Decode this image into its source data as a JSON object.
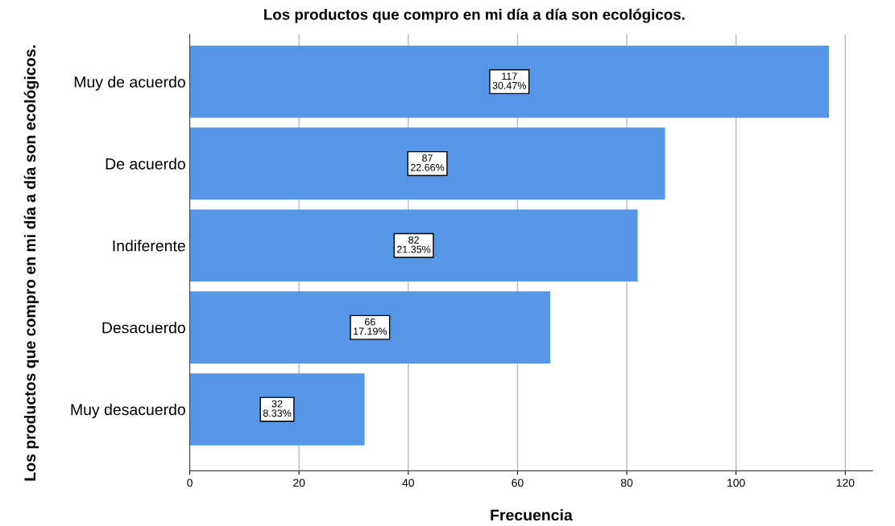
{
  "chart_data": {
    "type": "bar",
    "orientation": "horizontal",
    "title": "Los productos que compro en mi día a día son ecológicos.",
    "xlabel": "Frecuencia",
    "ylabel": "Los productos que compro en mi día a día son ecológicos.",
    "categories": [
      "Muy de acuerdo",
      "De acuerdo",
      "Indiferente",
      "Desacuerdo",
      "Muy desacuerdo"
    ],
    "values": [
      117,
      87,
      82,
      66,
      32
    ],
    "value_labels": [
      "117\n30.47%",
      "87\n22.66%",
      "82\n21.35%",
      "66\n17.19%",
      "32\n8.33%"
    ],
    "color": "#5596e6",
    "xlim": [
      0,
      125
    ],
    "xticks": [
      0,
      20,
      40,
      60,
      80,
      100,
      120
    ],
    "grid": "x",
    "legend": false
  }
}
